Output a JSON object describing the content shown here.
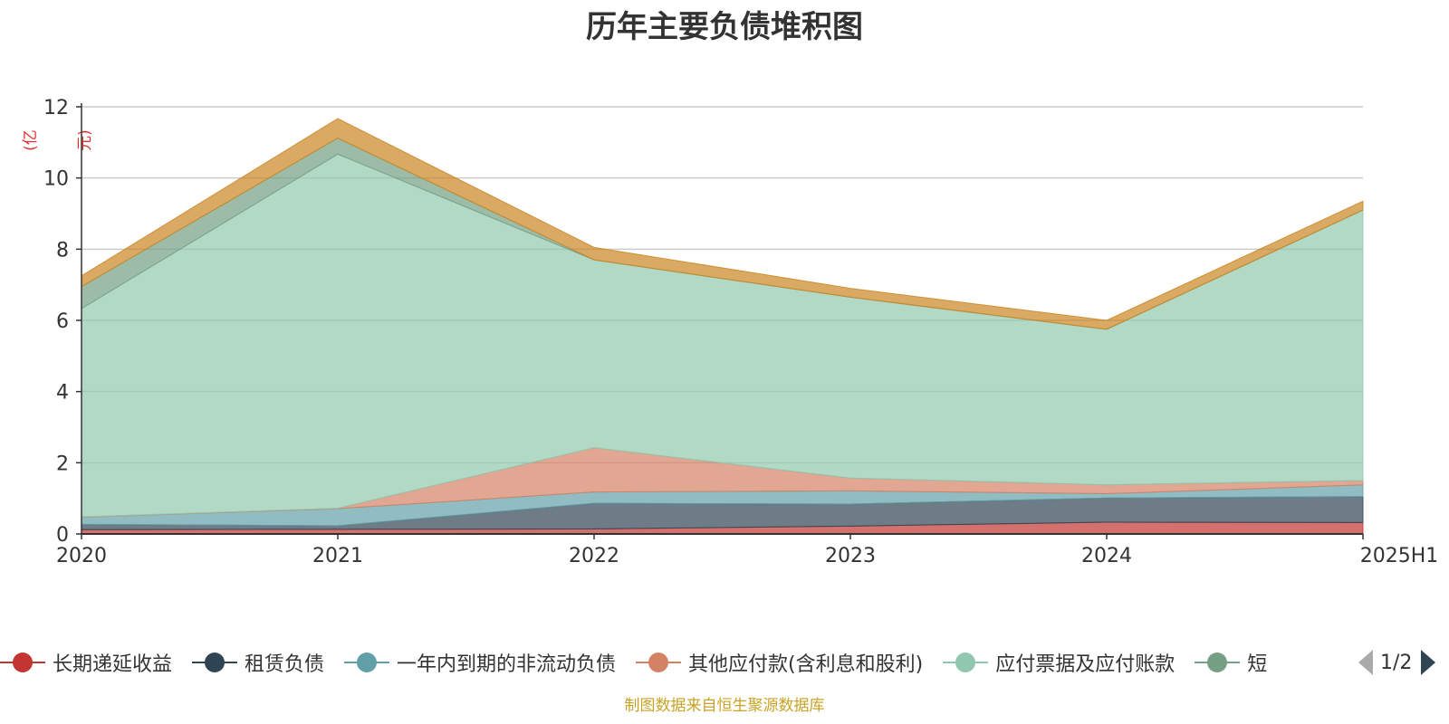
{
  "chart_data": {
    "type": "area",
    "stacked": true,
    "title": "历年主要负债堆积图",
    "unit": "(亿元)",
    "categories": [
      "2020",
      "2021",
      "2022",
      "2023",
      "2024",
      "2025H1"
    ],
    "ylim": [
      0,
      12
    ],
    "yticks": [
      0,
      2,
      4,
      6,
      8,
      10,
      12
    ],
    "grid": true,
    "legend_position": "bottom",
    "series": [
      {
        "name": "长期递延收益",
        "color": "#c23531",
        "values": [
          0.12,
          0.13,
          0.14,
          0.22,
          0.33,
          0.32
        ]
      },
      {
        "name": "租赁负债",
        "color": "#2f4554",
        "values": [
          0.15,
          0.1,
          0.72,
          0.62,
          0.68,
          0.73
        ]
      },
      {
        "name": "一年内到期的非流动负债",
        "color": "#61a0a8",
        "values": [
          0.2,
          0.48,
          0.32,
          0.37,
          0.12,
          0.33
        ]
      },
      {
        "name": "其他应付款(含利息和股利)",
        "color": "#d48265",
        "values": [
          0.01,
          0.01,
          1.24,
          0.36,
          0.25,
          0.12
        ]
      },
      {
        "name": "应付票据及应付账款",
        "color": "#91c7ae",
        "values": [
          5.85,
          9.95,
          5.28,
          5.08,
          4.37,
          7.6
        ]
      },
      {
        "name": "短期借款",
        "color": "#749f83",
        "values": [
          0.62,
          0.45,
          0.0,
          0.0,
          0.0,
          0.0
        ]
      },
      {
        "name": "",
        "color": "#ca8622",
        "values": [
          0.3,
          0.55,
          0.35,
          0.25,
          0.25,
          0.25
        ]
      }
    ]
  },
  "legend": {
    "visible_labels": [
      "长期递延收益",
      "租赁负债",
      "一年内到期的非流动负债",
      "其他应付款(含利息和股利)",
      "应付票据及应付账款",
      "短"
    ],
    "page_indicator": "1/2"
  },
  "source_note": "制图数据来自恒生聚源数据库"
}
